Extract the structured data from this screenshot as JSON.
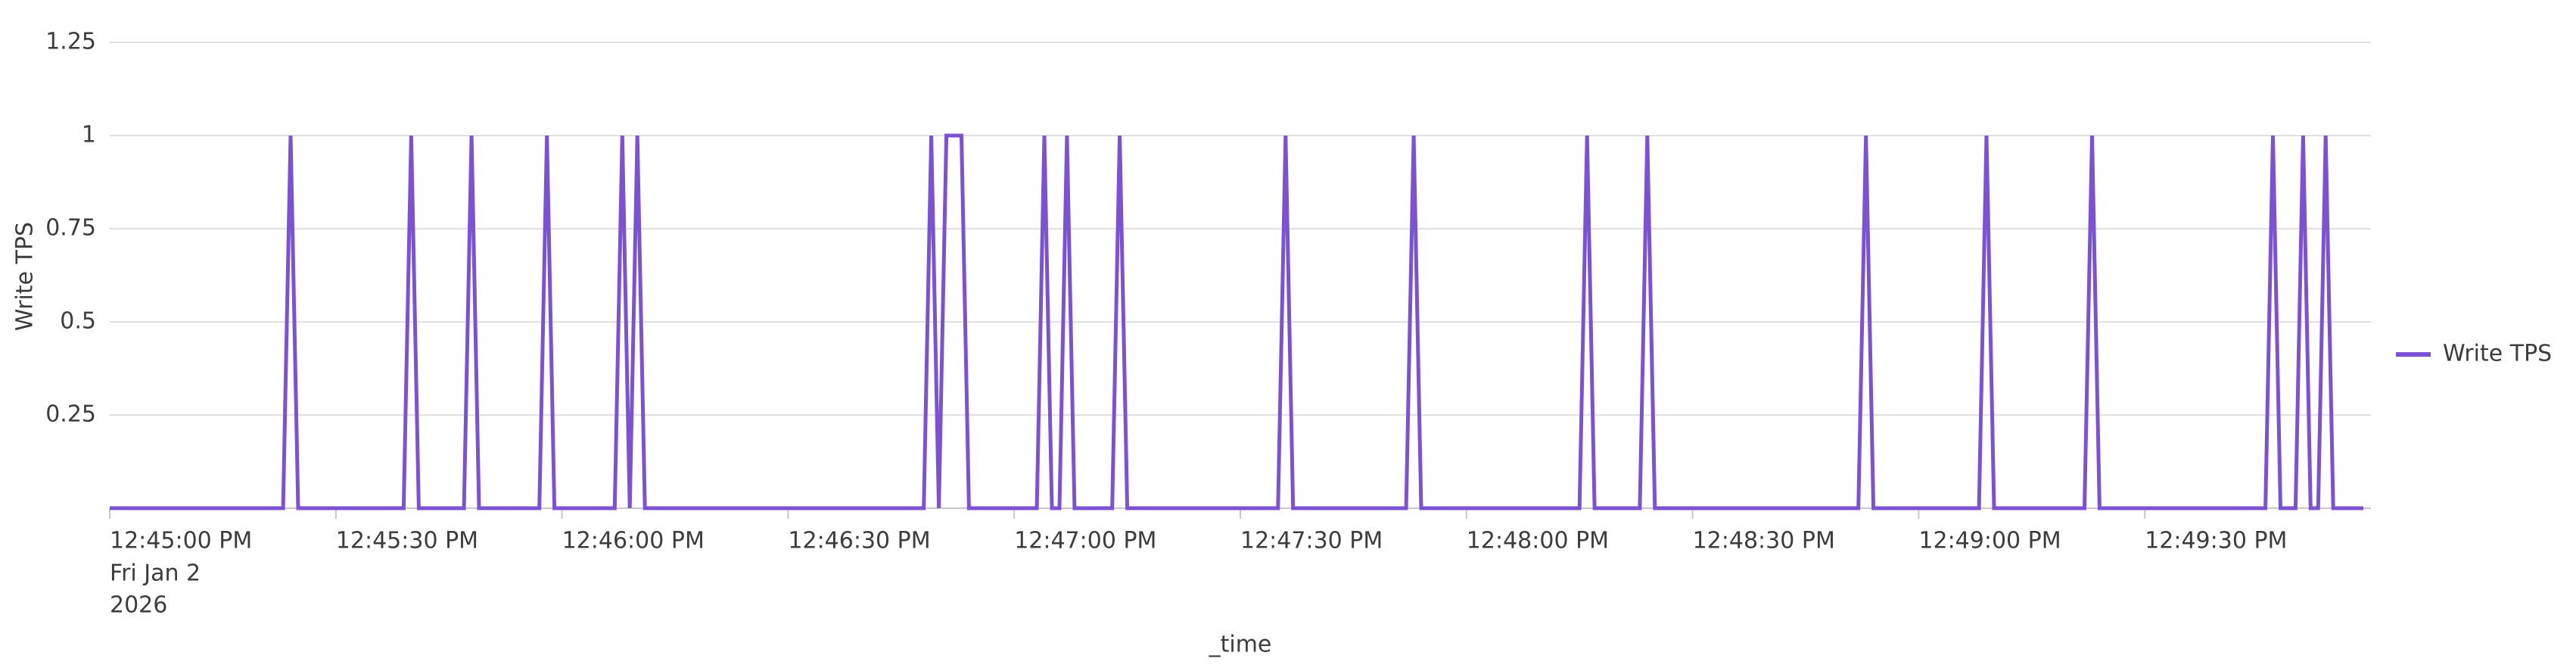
{
  "chart_data": {
    "type": "line",
    "y_label": "Write TPS",
    "x_label": "_time",
    "x_date_label": [
      "Fri Jan 2",
      "2026"
    ],
    "x": [
      "2026-01-02T12:45:00",
      "2026-01-02T12:45:23",
      "2026-01-02T12:45:24",
      "2026-01-02T12:45:25",
      "2026-01-02T12:45:39",
      "2026-01-02T12:45:40",
      "2026-01-02T12:45:41",
      "2026-01-02T12:45:47",
      "2026-01-02T12:45:48",
      "2026-01-02T12:45:49",
      "2026-01-02T12:45:57",
      "2026-01-02T12:45:58",
      "2026-01-02T12:45:59",
      "2026-01-02T12:46:07",
      "2026-01-02T12:46:08",
      "2026-01-02T12:46:09",
      "2026-01-02T12:46:10",
      "2026-01-02T12:46:11",
      "2026-01-02T12:46:48",
      "2026-01-02T12:46:49",
      "2026-01-02T12:46:50",
      "2026-01-02T12:46:51",
      "2026-01-02T12:46:53",
      "2026-01-02T12:46:54",
      "2026-01-02T12:47:03",
      "2026-01-02T12:47:04",
      "2026-01-02T12:47:05",
      "2026-01-02T12:47:06",
      "2026-01-02T12:47:07",
      "2026-01-02T12:47:08",
      "2026-01-02T12:47:13",
      "2026-01-02T12:47:14",
      "2026-01-02T12:47:15",
      "2026-01-02T12:47:35",
      "2026-01-02T12:47:36",
      "2026-01-02T12:47:37",
      "2026-01-02T12:47:52",
      "2026-01-02T12:47:53",
      "2026-01-02T12:47:54",
      "2026-01-02T12:48:15",
      "2026-01-02T12:48:16",
      "2026-01-02T12:48:17",
      "2026-01-02T12:48:23",
      "2026-01-02T12:48:24",
      "2026-01-02T12:48:25",
      "2026-01-02T12:48:52",
      "2026-01-02T12:48:53",
      "2026-01-02T12:48:54",
      "2026-01-02T12:49:08",
      "2026-01-02T12:49:09",
      "2026-01-02T12:49:10",
      "2026-01-02T12:49:22",
      "2026-01-02T12:49:23",
      "2026-01-02T12:49:24",
      "2026-01-02T12:49:46",
      "2026-01-02T12:49:47",
      "2026-01-02T12:49:48",
      "2026-01-02T12:49:50",
      "2026-01-02T12:49:51",
      "2026-01-02T12:49:52",
      "2026-01-02T12:49:53",
      "2026-01-02T12:49:54",
      "2026-01-02T12:49:55",
      "2026-01-02T12:49:59"
    ],
    "series": [
      {
        "name": "Write TPS",
        "color": "#7b52d3",
        "values": [
          0,
          0,
          1,
          0,
          0,
          1,
          0,
          0,
          1,
          0,
          0,
          1,
          0,
          0,
          1,
          0,
          1,
          0,
          0,
          1,
          0,
          1,
          1,
          0,
          0,
          1,
          0,
          0,
          1,
          0,
          0,
          1,
          0,
          0,
          1,
          0,
          0,
          1,
          0,
          0,
          1,
          0,
          0,
          1,
          0,
          0,
          1,
          0,
          0,
          1,
          0,
          0,
          1,
          0,
          0,
          1,
          0,
          0,
          1,
          0,
          0,
          1,
          0,
          0
        ]
      }
    ],
    "xlim": [
      "2026-01-02T12:45:00",
      "2026-01-02T12:50:00"
    ],
    "xticks": [
      {
        "value": "2026-01-02T12:45:00",
        "label": "12:45:00 PM"
      },
      {
        "value": "2026-01-02T12:45:30",
        "label": "12:45:30 PM"
      },
      {
        "value": "2026-01-02T12:46:00",
        "label": "12:46:00 PM"
      },
      {
        "value": "2026-01-02T12:46:30",
        "label": "12:46:30 PM"
      },
      {
        "value": "2026-01-02T12:47:00",
        "label": "12:47:00 PM"
      },
      {
        "value": "2026-01-02T12:47:30",
        "label": "12:47:30 PM"
      },
      {
        "value": "2026-01-02T12:48:00",
        "label": "12:48:00 PM"
      },
      {
        "value": "2026-01-02T12:48:30",
        "label": "12:48:30 PM"
      },
      {
        "value": "2026-01-02T12:49:00",
        "label": "12:49:00 PM"
      },
      {
        "value": "2026-01-02T12:49:30",
        "label": "12:49:30 PM"
      }
    ],
    "ylim": [
      0,
      1.25
    ],
    "yticks": [
      0.25,
      0.5,
      0.75,
      1,
      1.25
    ],
    "grid": true,
    "legend": "right"
  }
}
